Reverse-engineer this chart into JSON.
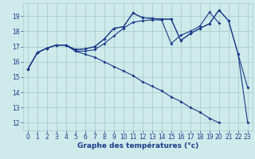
{
  "xlabel": "Graphe des températures (°c)",
  "x": [
    0,
    1,
    2,
    3,
    4,
    5,
    6,
    7,
    8,
    9,
    10,
    11,
    12,
    13,
    14,
    15,
    16,
    17,
    18,
    19,
    20,
    21,
    22,
    23
  ],
  "line1": [
    15.5,
    16.6,
    16.9,
    17.1,
    17.1,
    16.8,
    16.85,
    17.0,
    17.5,
    18.2,
    18.3,
    19.2,
    18.9,
    18.85,
    18.8,
    18.8,
    17.4,
    17.85,
    18.2,
    18.5,
    19.4,
    18.7,
    16.5,
    14.3
  ],
  "line2": [
    15.5,
    16.6,
    16.9,
    17.1,
    17.1,
    16.8,
    16.85,
    17.0,
    17.5,
    18.2,
    18.3,
    19.2,
    18.9,
    18.85,
    18.8,
    18.8,
    17.4,
    17.85,
    18.2,
    18.5,
    19.4,
    18.7,
    16.5,
    12.0
  ],
  "line3": [
    15.5,
    16.6,
    16.9,
    17.1,
    17.1,
    16.7,
    16.7,
    16.8,
    17.2,
    17.7,
    18.2,
    18.6,
    18.7,
    18.75,
    18.75,
    17.2,
    17.75,
    18.0,
    18.35,
    19.25,
    18.55,
    null,
    null,
    null
  ],
  "line4": [
    15.5,
    16.6,
    16.9,
    17.1,
    17.1,
    16.7,
    16.5,
    16.3,
    16.0,
    15.7,
    15.4,
    15.1,
    14.7,
    14.4,
    14.1,
    13.7,
    13.4,
    13.0,
    12.7,
    12.3,
    12.0,
    null,
    null,
    null
  ],
  "bg_color": "#ceeaea",
  "grid_color": "#aacece",
  "line_color": "#1a3a8a",
  "ylim": [
    11.5,
    19.85
  ],
  "yticks": [
    12,
    13,
    14,
    15,
    16,
    17,
    18,
    19
  ],
  "xticks": [
    0,
    1,
    2,
    3,
    4,
    5,
    6,
    7,
    8,
    9,
    10,
    11,
    12,
    13,
    14,
    15,
    16,
    17,
    18,
    19,
    20,
    21,
    22,
    23
  ]
}
